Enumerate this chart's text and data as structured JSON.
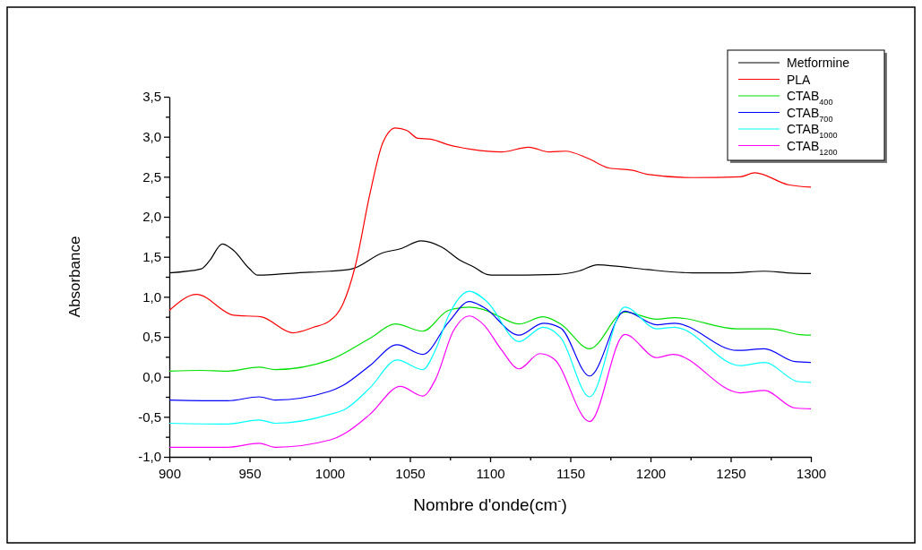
{
  "chart_data": {
    "type": "line",
    "xlabel": "Nombre d'onde(cm$^{-}$)",
    "ylabel": "Absorbance",
    "xlim": [
      900,
      1300
    ],
    "ylim": [
      -1.0,
      3.5
    ],
    "xticks": [
      900,
      {
        "value": 925,
        "label": null
      },
      950,
      {
        "value": 975,
        "label": null
      },
      1000,
      {
        "value": 1025,
        "label": null
      },
      1050,
      {
        "value": 1075,
        "label": null
      },
      1100,
      {
        "value": 1125,
        "label": null
      },
      1150,
      {
        "value": 1175,
        "label": null
      },
      1200,
      {
        "value": 1225,
        "label": null
      },
      1250,
      {
        "value": 1275,
        "label": null
      },
      1300
    ],
    "yticks": [
      {
        "value": -1.0,
        "label": "-1,0"
      },
      {
        "value": -0.75,
        "label": null
      },
      {
        "value": -0.5,
        "label": "-0,5"
      },
      {
        "value": -0.25,
        "label": null
      },
      {
        "value": 0,
        "label": "0,0"
      },
      {
        "value": 0.25,
        "label": null
      },
      {
        "value": 0.5,
        "label": "0,5"
      },
      {
        "value": 0.75,
        "label": null
      },
      {
        "value": 1.0,
        "label": "1,0"
      },
      {
        "value": 1.25,
        "label": null
      },
      {
        "value": 1.5,
        "label": "1,5"
      },
      {
        "value": 1.75,
        "label": null
      },
      {
        "value": 2.0,
        "label": "2,0"
      },
      {
        "value": 2.25,
        "label": null
      },
      {
        "value": 2.5,
        "label": "2,5"
      },
      {
        "value": 2.75,
        "label": null
      },
      {
        "value": 3.0,
        "label": "3,0"
      },
      {
        "value": 3.25,
        "label": null
      },
      {
        "value": 3.5,
        "label": "3,5"
      }
    ],
    "grid": false,
    "legend": "top right",
    "line_style": "solid",
    "marker": "none",
    "series": [
      {
        "name": "Metformine",
        "color": "#000000",
        "x": [
          900,
          920,
          925,
          933,
          940,
          950,
          955,
          980,
          1000,
          1014,
          1033,
          1044,
          1057,
          1070,
          1081,
          1090,
          1098,
          1103,
          1142,
          1155,
          1167,
          1180,
          1198,
          1226,
          1250,
          1271,
          1285,
          1300
        ],
        "values": [
          1.3,
          1.35,
          1.45,
          1.66,
          1.58,
          1.35,
          1.27,
          1.3,
          1.32,
          1.35,
          1.55,
          1.6,
          1.7,
          1.62,
          1.46,
          1.37,
          1.28,
          1.27,
          1.28,
          1.32,
          1.4,
          1.38,
          1.34,
          1.3,
          1.3,
          1.32,
          1.3,
          1.29
        ]
      },
      {
        "name": "PLA",
        "color": "#ff0000",
        "x": [
          900,
          917,
          940,
          957,
          977,
          990,
          1000,
          1008,
          1016,
          1025,
          1033,
          1041,
          1048,
          1055,
          1063,
          1074,
          1089,
          1107,
          1124,
          1137,
          1147,
          1161,
          1174,
          1189,
          1198,
          1226,
          1256,
          1265,
          1286,
          1300
        ],
        "values": [
          0.83,
          1.03,
          0.77,
          0.75,
          0.55,
          0.62,
          0.7,
          0.9,
          1.39,
          2.28,
          2.92,
          3.11,
          3.08,
          2.98,
          2.97,
          2.9,
          2.84,
          2.81,
          2.87,
          2.81,
          2.82,
          2.73,
          2.61,
          2.58,
          2.53,
          2.49,
          2.5,
          2.55,
          2.4,
          2.37
        ]
      },
      {
        "name": "CTAB$_{400}$",
        "color": "#00e000",
        "x": [
          900,
          919,
          936,
          956,
          966,
          1000,
          1025,
          1041,
          1058,
          1074,
          1087,
          1096,
          1105,
          1118,
          1133,
          1144,
          1162,
          1184,
          1204,
          1215,
          1254,
          1275,
          1292,
          1300
        ],
        "values": [
          0.07,
          0.08,
          0.07,
          0.12,
          0.09,
          0.21,
          0.48,
          0.66,
          0.57,
          0.83,
          0.87,
          0.84,
          0.76,
          0.66,
          0.75,
          0.66,
          0.35,
          0.81,
          0.72,
          0.74,
          0.6,
          0.6,
          0.53,
          0.52
        ]
      },
      {
        "name": "CTAB$_{700}$",
        "color": "#0000ff",
        "x": [
          900,
          936,
          956,
          966,
          1000,
          1008,
          1025,
          1042,
          1058,
          1074,
          1087,
          1096,
          1118,
          1133,
          1144,
          1162,
          1184,
          1204,
          1215,
          1254,
          1271,
          1290,
          1300
        ],
        "values": [
          -0.29,
          -0.3,
          -0.25,
          -0.29,
          -0.18,
          -0.11,
          0.14,
          0.4,
          0.28,
          0.68,
          0.94,
          0.87,
          0.52,
          0.67,
          0.61,
          0.01,
          0.82,
          0.65,
          0.67,
          0.33,
          0.35,
          0.19,
          0.18
        ]
      },
      {
        "name": "CTAB$_{1000}$",
        "color": "#00ffff",
        "x": [
          900,
          936,
          956,
          966,
          1000,
          1010,
          1025,
          1042,
          1058,
          1066,
          1074,
          1087,
          1098,
          1118,
          1133,
          1144,
          1162,
          1184,
          1204,
          1215,
          1256,
          1271,
          1292,
          1300
        ],
        "values": [
          -0.58,
          -0.59,
          -0.54,
          -0.58,
          -0.47,
          -0.4,
          -0.14,
          0.21,
          0.09,
          0.34,
          0.76,
          1.07,
          0.94,
          0.44,
          0.62,
          0.49,
          -0.25,
          0.87,
          0.6,
          0.62,
          0.14,
          0.18,
          -0.06,
          -0.07
        ]
      },
      {
        "name": "CTAB$_{1200}$",
        "color": "#ff00ff",
        "x": [
          900,
          936,
          956,
          966,
          1000,
          1010,
          1025,
          1044,
          1058,
          1066,
          1077,
          1087,
          1096,
          1107,
          1118,
          1131,
          1140,
          1162,
          1184,
          1204,
          1214,
          1256,
          1271,
          1290,
          1300
        ],
        "values": [
          -0.88,
          -0.88,
          -0.83,
          -0.88,
          -0.79,
          -0.7,
          -0.47,
          -0.12,
          -0.24,
          -0.03,
          0.57,
          0.76,
          0.65,
          0.34,
          0.1,
          0.29,
          0.22,
          -0.56,
          0.53,
          0.24,
          0.28,
          -0.2,
          -0.17,
          -0.39,
          -0.4
        ]
      }
    ]
  }
}
